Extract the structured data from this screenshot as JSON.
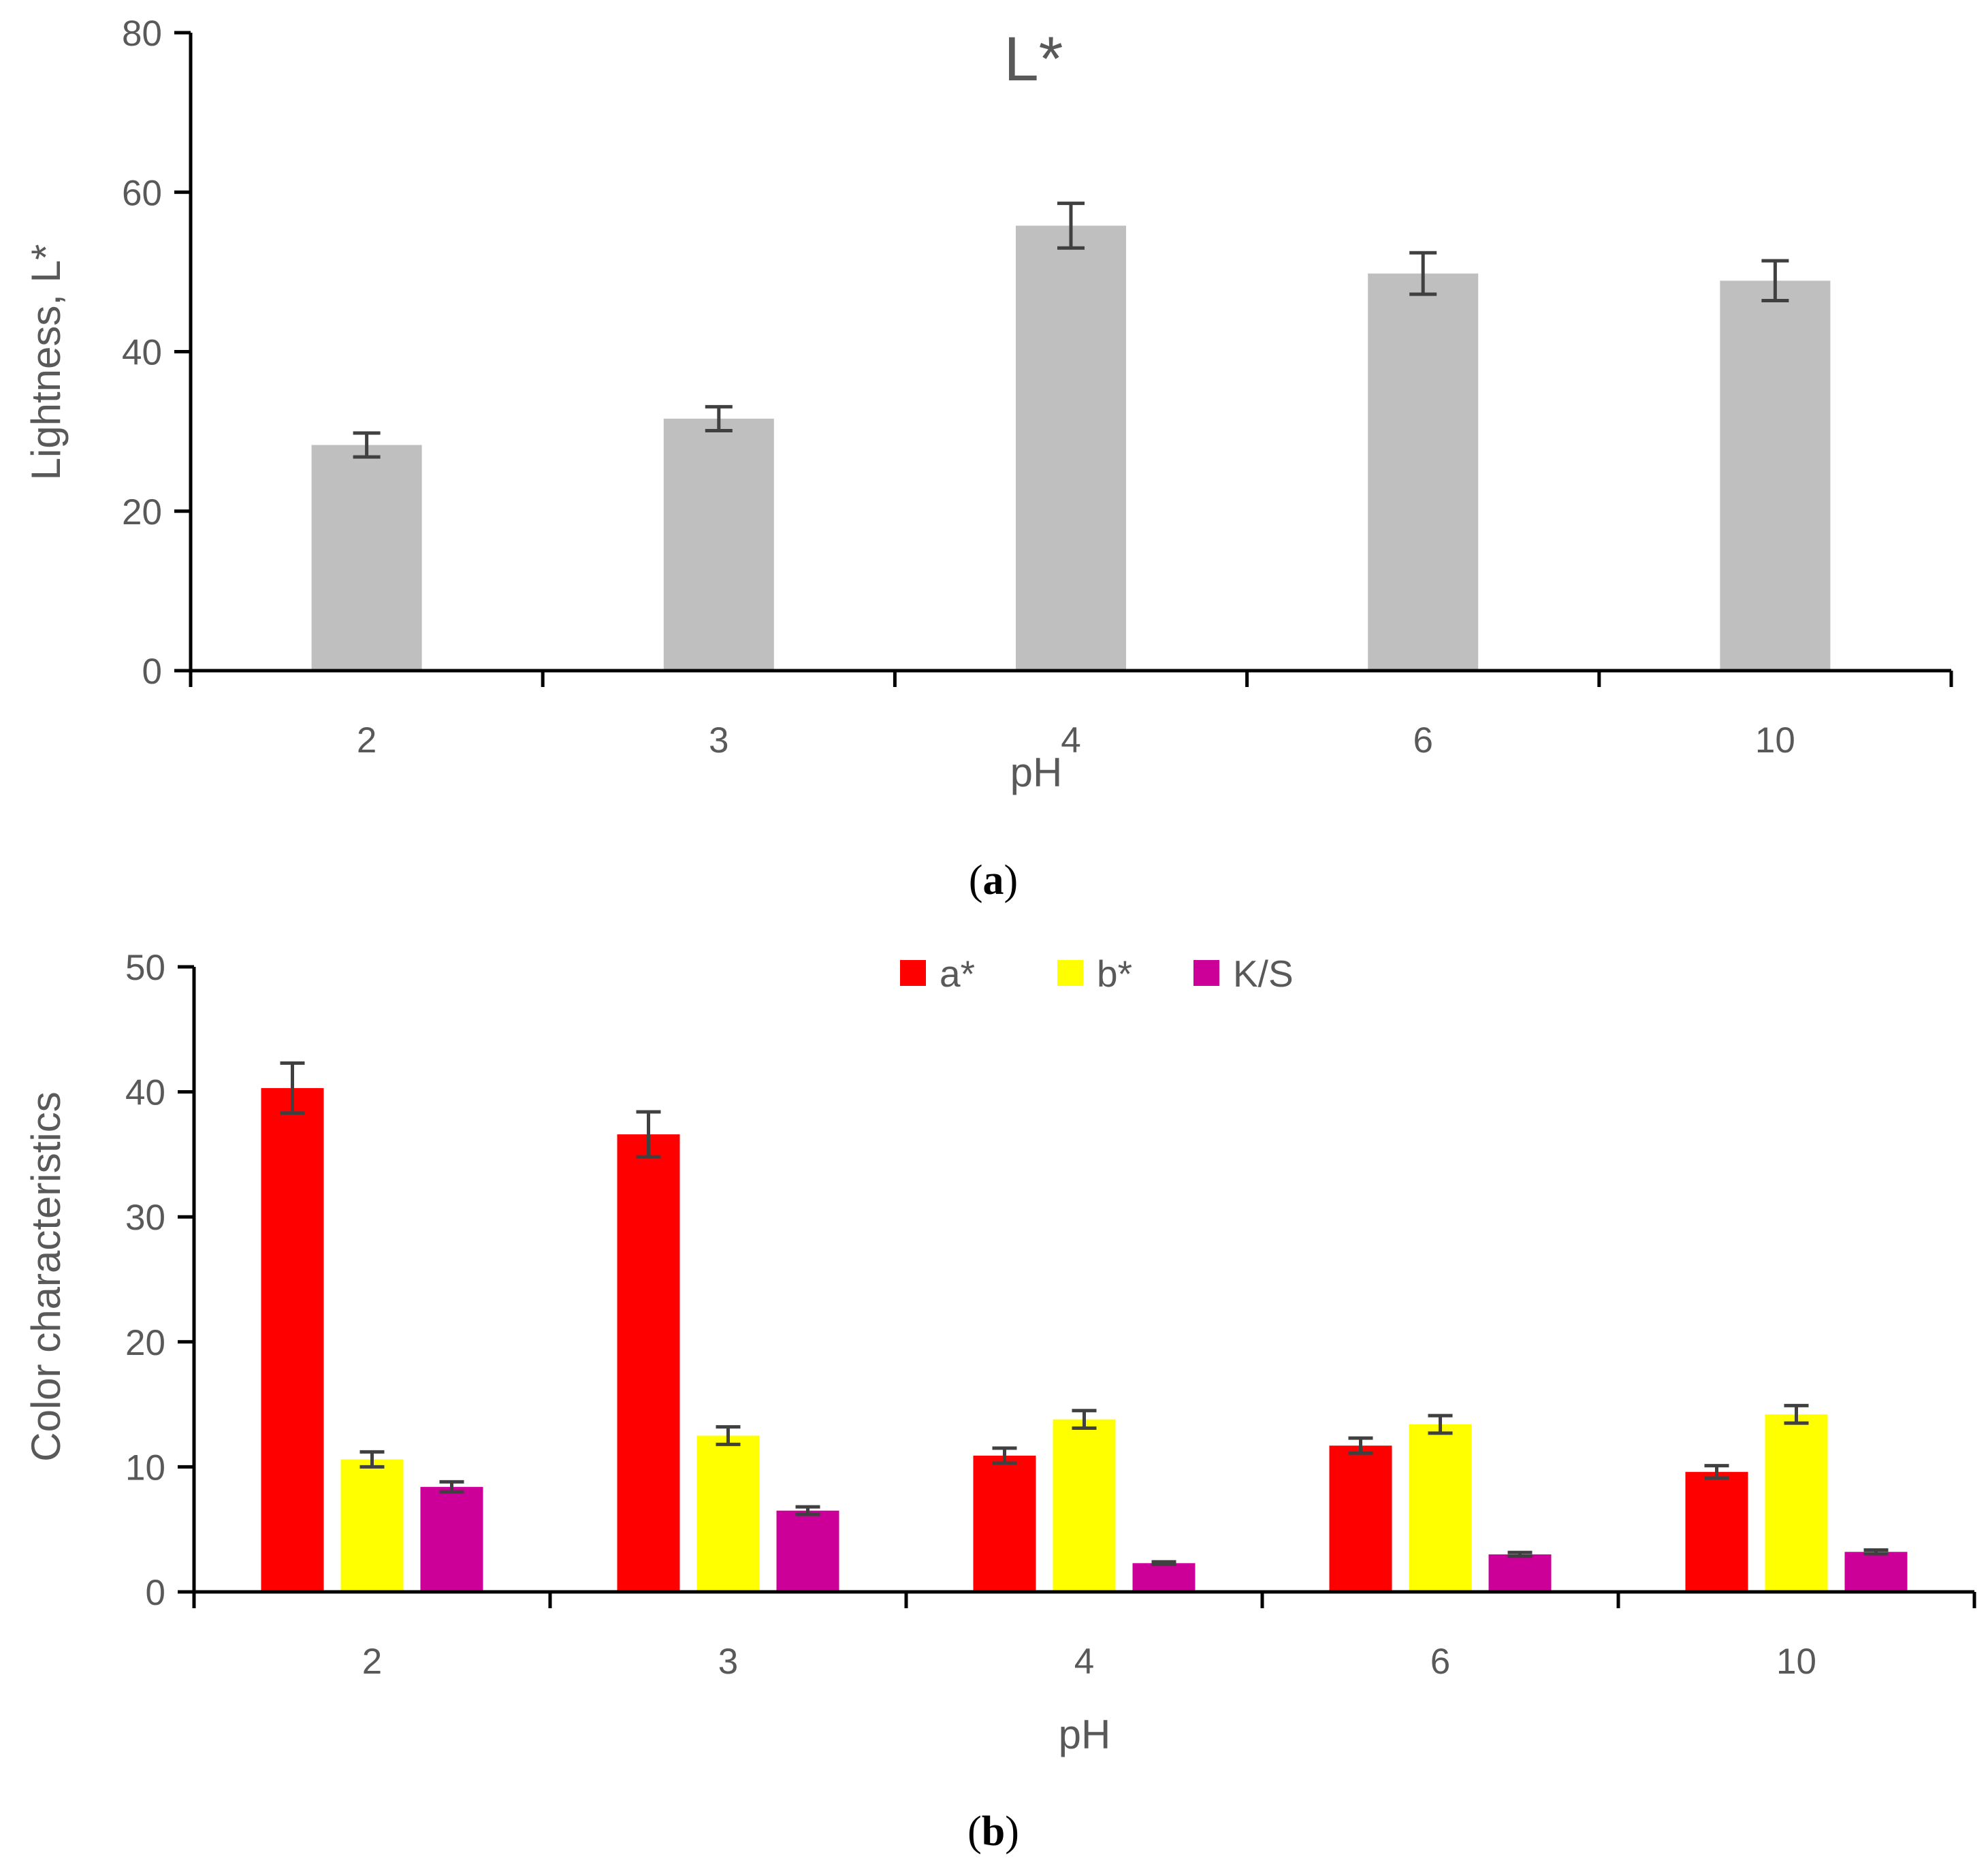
{
  "chart_data": [
    {
      "type": "bar",
      "panel": "a",
      "title": "L*",
      "xlabel": "pH",
      "ylabel": "Lightness, L*",
      "categories": [
        "2",
        "3",
        "4",
        "6",
        "10"
      ],
      "ylim": [
        0,
        80
      ],
      "yticks": [
        0,
        20,
        40,
        60,
        80
      ],
      "grid": false,
      "series": [
        {
          "name": "L*",
          "color": "#BFBFBF",
          "values": [
            28.3,
            31.6,
            55.8,
            49.8,
            48.9
          ],
          "errors": [
            1.5,
            1.5,
            2.8,
            2.6,
            2.5
          ]
        }
      ]
    },
    {
      "type": "bar",
      "panel": "b",
      "title": "",
      "xlabel": "pH",
      "ylabel": "Color characteristics",
      "categories": [
        "2",
        "3",
        "4",
        "6",
        "10"
      ],
      "ylim": [
        0,
        50
      ],
      "yticks": [
        0,
        10,
        20,
        30,
        40,
        50
      ],
      "grid": false,
      "legend_position": "top-center",
      "series": [
        {
          "name": "a*",
          "color": "#FF0000",
          "values": [
            40.3,
            36.6,
            10.9,
            11.7,
            9.6
          ],
          "errors": [
            2.0,
            1.8,
            0.6,
            0.6,
            0.5
          ]
        },
        {
          "name": "b*",
          "color": "#FFFF00",
          "values": [
            10.6,
            12.5,
            13.8,
            13.4,
            14.2
          ],
          "errors": [
            0.6,
            0.7,
            0.7,
            0.7,
            0.7
          ]
        },
        {
          "name": "K/S",
          "color": "#CC0099",
          "values": [
            8.4,
            6.5,
            2.3,
            3.0,
            3.2
          ],
          "errors": [
            0.4,
            0.3,
            0.1,
            0.15,
            0.15
          ]
        }
      ]
    }
  ],
  "captions": {
    "a": {
      "open": "(",
      "letter": "a",
      "close": ")"
    },
    "b": {
      "open": "(",
      "letter": "b",
      "close": ")"
    }
  },
  "colors": {
    "axis": "#000000",
    "text": "#595959",
    "errorbar": "#404040"
  }
}
